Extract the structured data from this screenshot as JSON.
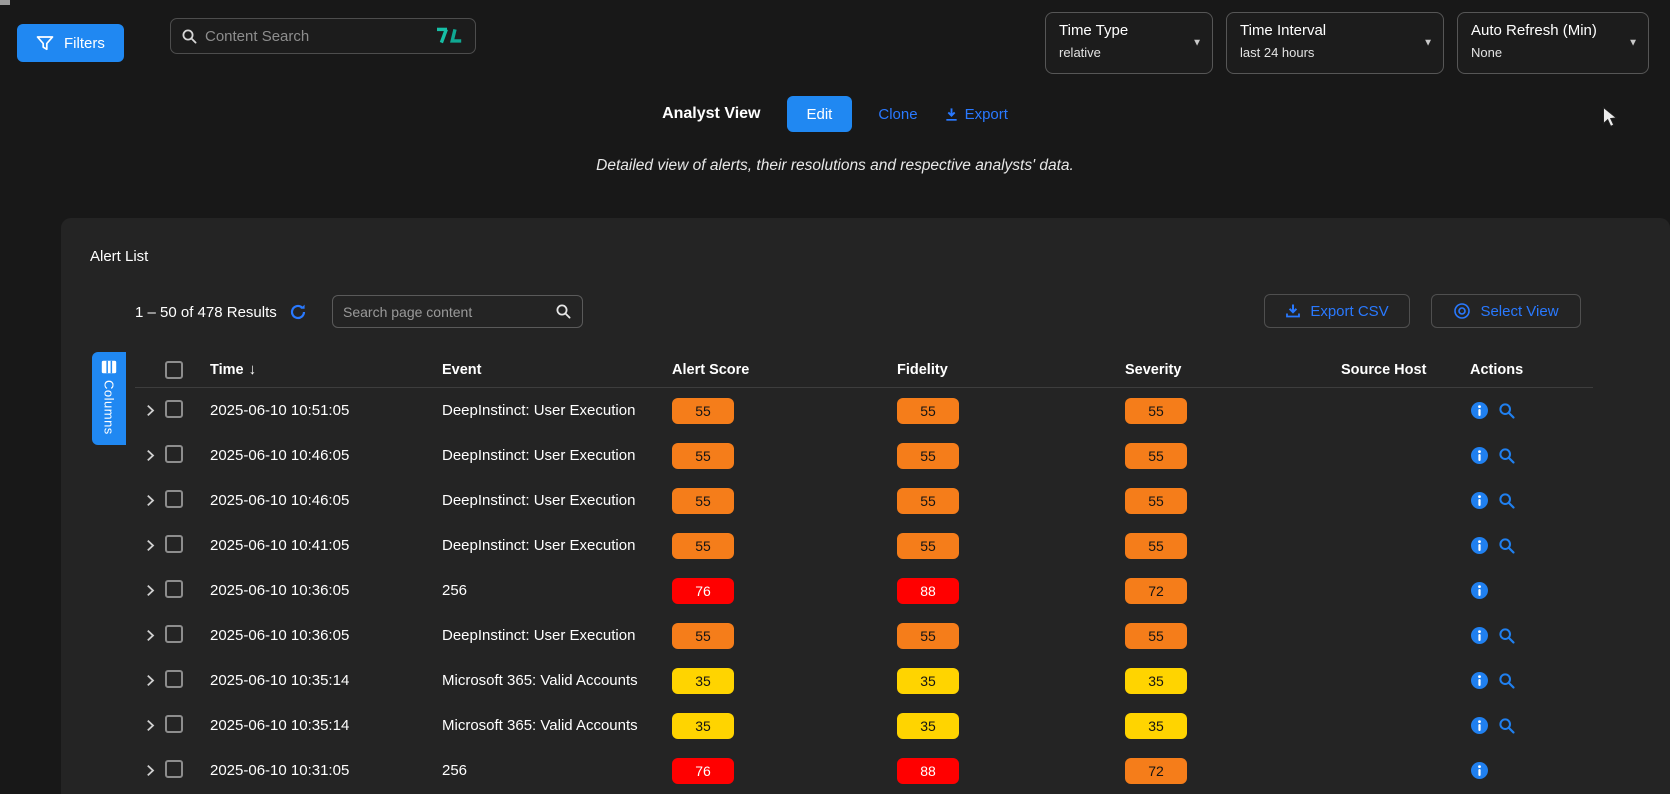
{
  "header_toolbar": {
    "filters_button": "Filters",
    "content_search_placeholder": "Content Search",
    "time_type": {
      "label": "Time Type",
      "value": "relative"
    },
    "time_interval": {
      "label": "Time Interval",
      "value": "last 24 hours"
    },
    "auto_refresh": {
      "label": "Auto Refresh (Min)",
      "value": "None"
    }
  },
  "view_bar": {
    "title": "Analyst View",
    "edit": "Edit",
    "clone": "Clone",
    "export": "Export",
    "description": "Detailed view of alerts, their resolutions and respective analysts' data."
  },
  "alert_panel": {
    "title": "Alert List",
    "results_summary": "1 – 50 of 478 Results",
    "page_search_placeholder": "Search page content",
    "export_csv": "Export CSV",
    "select_view": "Select View",
    "columns_tab": "Columns",
    "table": {
      "headers": {
        "time": "Time",
        "event": "Event",
        "alert_score": "Alert Score",
        "fidelity": "Fidelity",
        "severity": "Severity",
        "source_host": "Source Host",
        "actions": "Actions"
      },
      "sort": {
        "column": "Time",
        "direction": "desc"
      },
      "rows": [
        {
          "time": "2025-06-10 10:51:05",
          "event": "DeepInstinct: User Execution",
          "alert_score": {
            "value": "55",
            "variant": "orange"
          },
          "fidelity": {
            "value": "55",
            "variant": "orange"
          },
          "severity": {
            "value": "55",
            "variant": "orange"
          },
          "source_host": "",
          "actions": [
            "info",
            "search"
          ]
        },
        {
          "time": "2025-06-10 10:46:05",
          "event": "DeepInstinct: User Execution",
          "alert_score": {
            "value": "55",
            "variant": "orange"
          },
          "fidelity": {
            "value": "55",
            "variant": "orange"
          },
          "severity": {
            "value": "55",
            "variant": "orange"
          },
          "source_host": "",
          "actions": [
            "info",
            "search"
          ]
        },
        {
          "time": "2025-06-10 10:46:05",
          "event": "DeepInstinct: User Execution",
          "alert_score": {
            "value": "55",
            "variant": "orange"
          },
          "fidelity": {
            "value": "55",
            "variant": "orange"
          },
          "severity": {
            "value": "55",
            "variant": "orange"
          },
          "source_host": "",
          "actions": [
            "info",
            "search"
          ]
        },
        {
          "time": "2025-06-10 10:41:05",
          "event": "DeepInstinct: User Execution",
          "alert_score": {
            "value": "55",
            "variant": "orange"
          },
          "fidelity": {
            "value": "55",
            "variant": "orange"
          },
          "severity": {
            "value": "55",
            "variant": "orange"
          },
          "source_host": "",
          "actions": [
            "info",
            "search"
          ]
        },
        {
          "time": "2025-06-10 10:36:05",
          "event": "256",
          "alert_score": {
            "value": "76",
            "variant": "red"
          },
          "fidelity": {
            "value": "88",
            "variant": "red"
          },
          "severity": {
            "value": "72",
            "variant": "orange"
          },
          "source_host": "",
          "actions": [
            "info"
          ]
        },
        {
          "time": "2025-06-10 10:36:05",
          "event": "DeepInstinct: User Execution",
          "alert_score": {
            "value": "55",
            "variant": "orange"
          },
          "fidelity": {
            "value": "55",
            "variant": "orange"
          },
          "severity": {
            "value": "55",
            "variant": "orange"
          },
          "source_host": "",
          "actions": [
            "info",
            "search"
          ]
        },
        {
          "time": "2025-06-10 10:35:14",
          "event": "Microsoft 365: Valid Accounts",
          "alert_score": {
            "value": "35",
            "variant": "yellow"
          },
          "fidelity": {
            "value": "35",
            "variant": "yellow"
          },
          "severity": {
            "value": "35",
            "variant": "yellow"
          },
          "source_host": "",
          "actions": [
            "info",
            "search"
          ]
        },
        {
          "time": "2025-06-10 10:35:14",
          "event": "Microsoft 365: Valid Accounts",
          "alert_score": {
            "value": "35",
            "variant": "yellow"
          },
          "fidelity": {
            "value": "35",
            "variant": "yellow"
          },
          "severity": {
            "value": "35",
            "variant": "yellow"
          },
          "source_host": "",
          "actions": [
            "info",
            "search"
          ]
        },
        {
          "time": "2025-06-10 10:31:05",
          "event": "256",
          "alert_score": {
            "value": "76",
            "variant": "red"
          },
          "fidelity": {
            "value": "88",
            "variant": "red"
          },
          "severity": {
            "value": "72",
            "variant": "orange"
          },
          "source_host": "",
          "actions": [
            "info"
          ]
        }
      ]
    }
  },
  "colors": {
    "accent_blue": "#2088f2",
    "link_blue": "#2979ff",
    "badge_orange": "#f57d1a",
    "badge_red": "#ff0000",
    "badge_yellow": "#ffd400",
    "logo_teal": "#16bfa6",
    "page_background": "#181818",
    "panel_background": "#242424"
  }
}
